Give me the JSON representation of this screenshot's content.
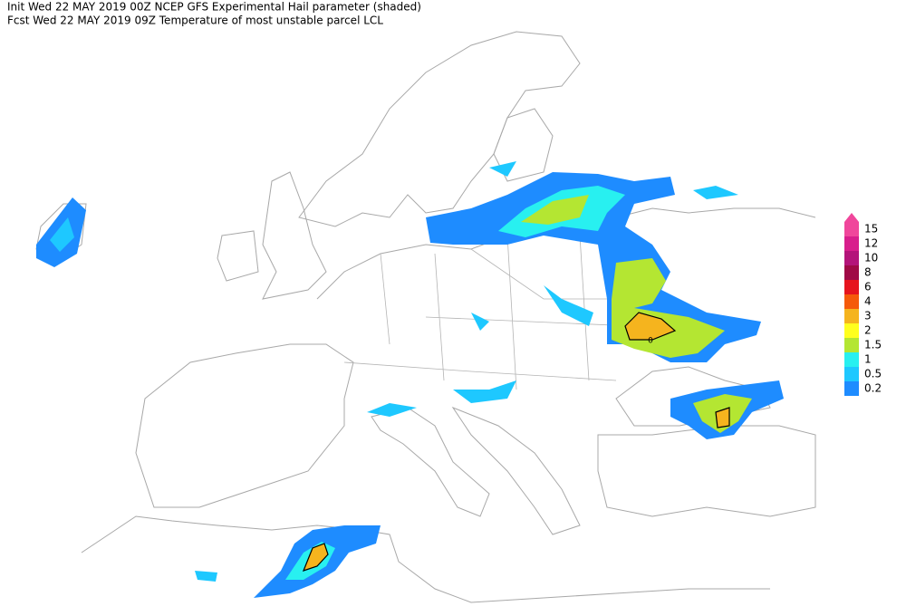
{
  "header": {
    "line1": "Init  Wed 22 MAY 2019 00Z  NCEP GFS Experimental Hail parameter (shaded)",
    "line2": "Fcst Wed 22 MAY 2019 09Z  Temperature of most unstable parcel LCL"
  },
  "legend": {
    "items": [
      {
        "label": "15",
        "color": "#f0469b"
      },
      {
        "label": "12",
        "color": "#d81e8c"
      },
      {
        "label": "10",
        "color": "#b4147a"
      },
      {
        "label": "8",
        "color": "#a00a46"
      },
      {
        "label": "6",
        "color": "#e6141e"
      },
      {
        "label": "4",
        "color": "#f55a0a"
      },
      {
        "label": "3",
        "color": "#f5b41e"
      },
      {
        "label": "2",
        "color": "#ffff1e"
      },
      {
        "label": "1.5",
        "color": "#b4e632"
      },
      {
        "label": "1",
        "color": "#28f0f0"
      },
      {
        "label": "0.5",
        "color": "#1ec8ff"
      },
      {
        "label": "0.2",
        "color": "#1e8cff"
      }
    ]
  },
  "contour_labels": [
    "0"
  ]
}
